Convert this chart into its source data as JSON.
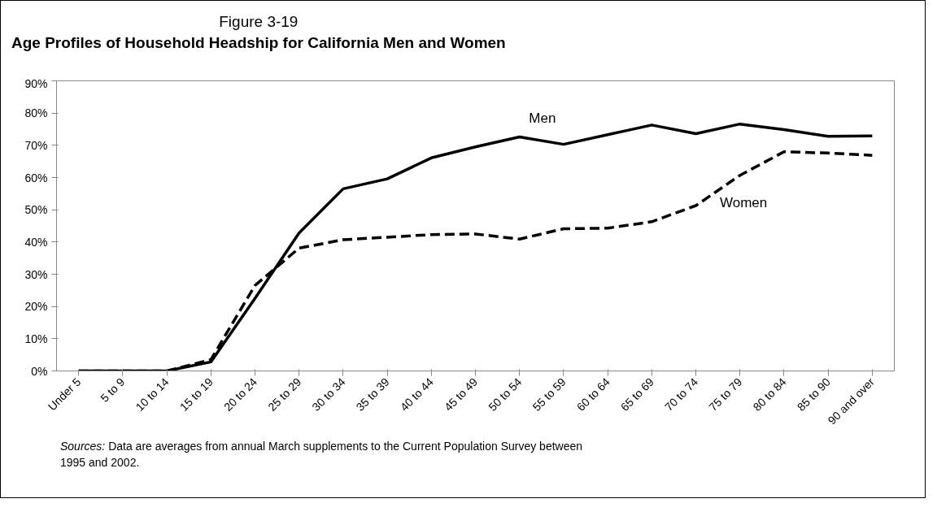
{
  "chart_data": {
    "type": "line",
    "title": "Age Profiles of Household Headship for California Men and Women",
    "subtitle": "Figure 3-19",
    "categories": [
      "Under 5",
      "5 to 9",
      "10 to 14",
      "15 to 19",
      "20 to 24",
      "25 to 29",
      "30 to 34",
      "35 to 39",
      "40 to 44",
      "45 to 49",
      "50 to 54",
      "55 to 59",
      "60 to 64",
      "65 to 69",
      "70 to 74",
      "75 to 79",
      "80 to 84",
      "85 to 90",
      "90 and over"
    ],
    "series": [
      {
        "name": "Men",
        "color": "#000000",
        "line_style": "solid",
        "values": [
          0,
          0,
          0,
          2.8,
          22.5,
          42.8,
          56.5,
          59.6,
          66.1,
          69.5,
          72.6,
          70.3,
          73.3,
          76.3,
          73.6,
          76.6,
          74.9,
          72.8,
          72.9
        ]
      },
      {
        "name": "Women",
        "color": "#000000",
        "line_style": "dashed",
        "values": [
          0,
          0,
          0,
          3.5,
          26.5,
          38.1,
          40.7,
          41.5,
          42.3,
          42.5,
          40.9,
          44.1,
          44.3,
          46.3,
          51.3,
          60.7,
          68.0,
          67.6,
          66.9
        ]
      }
    ],
    "ylim": [
      0,
      90
    ],
    "yticks": [
      {
        "value": 0,
        "label": "0%"
      },
      {
        "value": 10,
        "label": "10%"
      },
      {
        "value": 20,
        "label": "20%"
      },
      {
        "value": 30,
        "label": "30%"
      },
      {
        "value": 40,
        "label": "40%"
      },
      {
        "value": 50,
        "label": "50%"
      },
      {
        "value": 60,
        "label": "60%"
      },
      {
        "value": 70,
        "label": "70%"
      },
      {
        "value": 80,
        "label": "80%"
      },
      {
        "value": 90,
        "label": "90%"
      }
    ],
    "grid": false,
    "legend": false,
    "marker": "none",
    "annotations": [
      "Sources:",
      "Data are averages from annual March supplements to the Current Population Survey between 1995 and 2002."
    ]
  }
}
